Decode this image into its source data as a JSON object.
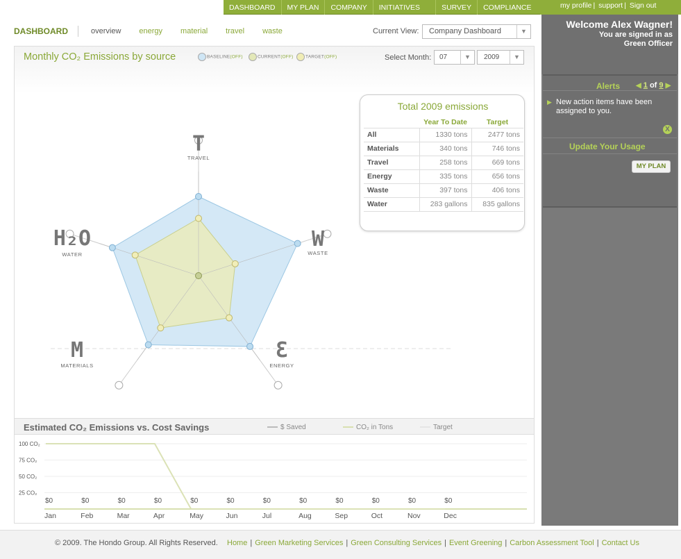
{
  "nav": {
    "main": [
      "DASHBOARD",
      "MY PLAN",
      "COMPANY",
      "INITIATIVES",
      "SURVEY",
      "COMPLIANCE"
    ],
    "user": [
      "my profile",
      "support",
      "Sign out"
    ]
  },
  "subnav": {
    "title": "DASHBOARD",
    "items": [
      "overview",
      "energy",
      "material",
      "travel",
      "waste"
    ],
    "current_view_label": "Current View:",
    "current_view_value": "Company Dashboard"
  },
  "radar": {
    "title": "Monthly CO₂ Emissions by source",
    "legend": [
      {
        "name": "BASELINE",
        "state": "(OFF)",
        "color": "#cfe6f5"
      },
      {
        "name": "CURRENT",
        "state": "(OFF)",
        "color": "#e3e8b8"
      },
      {
        "name": "TARGET",
        "state": "(OFF)",
        "color": "#f0edb5"
      }
    ],
    "select_month_label": "Select Month:",
    "month": "07",
    "year": "2009",
    "axes": [
      {
        "letter": "T",
        "label": "TRAVEL"
      },
      {
        "letter": "W",
        "label": "WASTE"
      },
      {
        "letter": "Ɛ",
        "label": "ENERGY"
      },
      {
        "letter": "M",
        "label": "MATERIALS"
      },
      {
        "letter": "H₂O",
        "label": "WATER"
      }
    ],
    "baseline": [
      0.76,
      1.0,
      0.84,
      0.82,
      0.87
    ],
    "current": [
      0.55,
      0.37,
      0.5,
      0.62,
      0.64
    ],
    "colors": {
      "baseline": "#cfe6f5",
      "current": "#e9ebbf",
      "grid": "#cccccc"
    }
  },
  "totals": {
    "title": "Total 2009 emissions",
    "headers": [
      "Year To Date",
      "Target"
    ],
    "rows": [
      {
        "label": "All",
        "ytd": "1330 tons",
        "target": "2477 tons"
      },
      {
        "label": "Materials",
        "ytd": "340 tons",
        "target": "746 tons"
      },
      {
        "label": "Travel",
        "ytd": "258 tons",
        "target": "669 tons"
      },
      {
        "label": "Energy",
        "ytd": "335 tons",
        "target": "656 tons"
      },
      {
        "label": "Waste",
        "ytd": "397 tons",
        "target": "406 tons"
      },
      {
        "label": "Water",
        "ytd": "283 gallons",
        "target": "835 gallons"
      }
    ]
  },
  "cost_chart": {
    "title": "Estimated CO₂ Emissions vs. Cost Savings",
    "legend": [
      "$ Saved",
      "CO₂ in Tons",
      "Target"
    ],
    "legend_colors": [
      "#bbbbbb",
      "#d8e0b0",
      "#dddddd"
    ],
    "chart_data": {
      "type": "line",
      "categories": [
        "Jan",
        "Feb",
        "Mar",
        "Apr",
        "May",
        "Jun",
        "Jul",
        "Aug",
        "Sep",
        "Oct",
        "Nov",
        "Dec"
      ],
      "y_ticks": [
        "100 CO₂",
        "75 CO₂",
        "50 CO₂",
        "25 CO₂"
      ],
      "ylim": [
        0,
        100
      ],
      "series": [
        {
          "name": "CO₂ in Tons",
          "values": [
            100,
            100,
            100,
            100,
            0,
            0,
            0,
            0,
            0,
            0,
            0,
            0
          ]
        }
      ],
      "saved_labels": [
        "$0",
        "$0",
        "$0",
        "$0",
        "$0",
        "$0",
        "$0",
        "$0",
        "$0",
        "$0",
        "$0",
        "$0"
      ]
    }
  },
  "sidebar": {
    "welcome": "Welcome Alex Wagner!",
    "signed_in_as": "You are signed in as",
    "role": "Green Officer",
    "alerts_title": "Alerts",
    "alerts_page": "1",
    "alerts_of": "of",
    "alerts_total": "9",
    "alert_message": "New action items have been assigned to you.",
    "close_symbol": "X",
    "update_title": "Update Your Usage",
    "my_plan_button": "MY PLAN"
  },
  "footer": {
    "copyright": "© 2009. The Hondo Group. All Rights Reserved.",
    "links": [
      "Home",
      "Green Marketing Services",
      "Green Consulting Services",
      "Event Greening",
      "Carbon Assessment Tool",
      "Contact Us"
    ]
  }
}
